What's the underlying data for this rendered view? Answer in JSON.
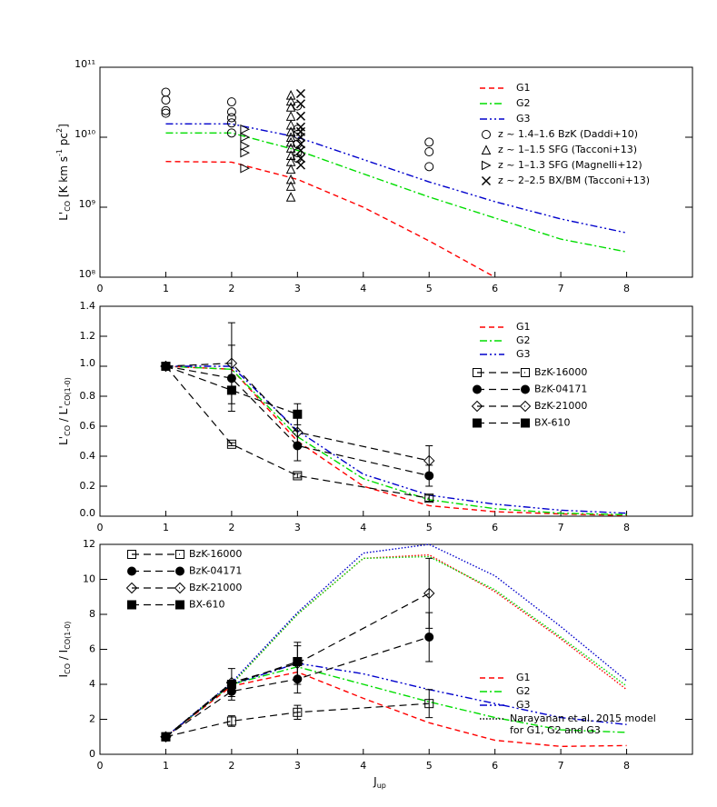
{
  "chart_data": [
    {
      "type": "line",
      "log_y": true,
      "legend": "upper right",
      "ylabel": [
        {
          "t": "L'"
        },
        {
          "t": "CO",
          "pos": "sub"
        },
        {
          "t": " [K km s"
        },
        {
          "t": "-1",
          "pos": "sup"
        },
        {
          "t": " pc"
        },
        {
          "t": "2",
          "pos": "sup"
        },
        {
          "t": "]"
        }
      ],
      "xlim": [
        0,
        9
      ],
      "xticks": [
        0,
        1,
        2,
        3,
        4,
        5,
        6,
        7,
        8
      ],
      "ylim": [
        100000000,
        100000000000
      ],
      "yticks": [
        {
          "value": 100000000,
          "label": "10⁸"
        },
        {
          "value": 1000000000,
          "label": "10⁹"
        },
        {
          "value": 10000000000,
          "label": "10¹⁰"
        },
        {
          "value": 100000000000,
          "label": "10¹¹"
        }
      ],
      "x": [
        1,
        2,
        3,
        4,
        5,
        6,
        7,
        8
      ],
      "series": [
        {
          "name": "G1",
          "color": "#ff0000",
          "dash": "dashed",
          "values": [
            4500000000,
            4400000000,
            2500000000,
            1000000000,
            330000000,
            100000000,
            null,
            null
          ]
        },
        {
          "name": "G2",
          "color": "#00dd00",
          "dash": "dashdot",
          "values": [
            11500000000,
            11500000000,
            6500000000,
            3000000000,
            1400000000,
            700000000,
            350000000,
            230000000
          ]
        },
        {
          "name": "G3",
          "color": "#0000cc",
          "dash": "dashdotdot",
          "values": [
            15500000000,
            15500000000,
            10000000000,
            4800000000,
            2300000000,
            1200000000,
            680000000,
            430000000
          ]
        }
      ],
      "points": [
        {
          "name": "z ~ 1.4–1.6 BzK (Daddi+10)",
          "marker": "circle",
          "x": [
            1,
            1,
            1,
            1,
            2,
            2,
            2,
            2,
            2,
            3,
            3,
            3,
            3,
            3,
            3,
            5,
            5,
            5
          ],
          "values": [
            44000000000,
            34000000000,
            24000000000,
            22000000000,
            32000000000,
            23000000000,
            19000000000,
            16000000000,
            11500000000,
            28000000000,
            13000000000,
            11000000000,
            8000000000,
            6000000000,
            5000000000,
            8500000000,
            6200000000,
            3800000000
          ]
        },
        {
          "name": "z ~ 1–1.5 SFG (Tacconi+13)",
          "marker": "triangle",
          "x": [
            2.9,
            2.9,
            2.9,
            2.9,
            2.9,
            2.9,
            2.9,
            2.9,
            2.9,
            2.9,
            2.9,
            2.9,
            2.9,
            2.9,
            2.9
          ],
          "values": [
            40000000000,
            33000000000,
            27000000000,
            20000000000,
            15000000000,
            12000000000,
            10000000000,
            8500000000,
            7000000000,
            5500000000,
            4500000000,
            3500000000,
            2500000000,
            2000000000,
            1400000000
          ]
        },
        {
          "name": "z ~ 1–1.3 SFG (Magnelli+12)",
          "marker": "triangle-right",
          "x": [
            2.2,
            2.2,
            2.2,
            2.2,
            2.2
          ],
          "values": [
            13000000000,
            10000000000,
            7500000000,
            6000000000,
            3600000000
          ]
        },
        {
          "name": "z ~ 2–2.5 BX/BM (Tacconi+13)",
          "marker": "x",
          "x": [
            3.05,
            3.05,
            3.05,
            3.05,
            3.05,
            3.05,
            3.05,
            3.05,
            3.05,
            3.05
          ],
          "values": [
            42000000000,
            30000000000,
            20000000000,
            14000000000,
            12000000000,
            10000000000,
            8000000000,
            6500000000,
            5000000000,
            4000000000
          ]
        }
      ]
    },
    {
      "type": "line",
      "legend": "upper right",
      "ylabel": [
        {
          "t": "L'"
        },
        {
          "t": "CO",
          "pos": "sub"
        },
        {
          "t": " / L'"
        },
        {
          "t": "CO(1-0)",
          "pos": "sub"
        }
      ],
      "xlim": [
        0,
        9
      ],
      "xticks": [
        0,
        1,
        2,
        3,
        4,
        5,
        6,
        7,
        8
      ],
      "ylim": [
        0,
        1.4
      ],
      "yticks": [
        {
          "value": 0,
          "label": "0.0"
        },
        0.2,
        0.4,
        0.6,
        0.8,
        {
          "value": 1,
          "label": "1.0"
        },
        1.2,
        1.4
      ],
      "x": [
        1,
        2,
        3,
        4,
        5,
        6,
        7,
        8
      ],
      "series": [
        {
          "name": "G1",
          "color": "#ff0000",
          "dash": "dashed",
          "values": [
            1,
            0.98,
            0.5,
            0.2,
            0.07,
            0.03,
            0.015,
            0.005
          ]
        },
        {
          "name": "G2",
          "color": "#00dd00",
          "dash": "dashdot",
          "values": [
            1,
            0.98,
            0.53,
            0.25,
            0.11,
            0.05,
            0.02,
            0.01
          ]
        },
        {
          "name": "G3",
          "color": "#0000cc",
          "dash": "dashdotdot",
          "values": [
            1,
            1.0,
            0.57,
            0.28,
            0.14,
            0.08,
            0.04,
            0.02
          ]
        }
      ],
      "observations": [
        {
          "name": "BzK-16000",
          "marker": "square",
          "x": [
            1,
            2,
            3,
            5
          ],
          "values": [
            1,
            0.48,
            0.27,
            0.12
          ],
          "errors": [
            null,
            0.01,
            0.015,
            0.02
          ]
        },
        {
          "name": "BzK-04171",
          "marker": "filled-circle",
          "x": [
            1,
            2,
            3,
            5
          ],
          "values": [
            1,
            0.92,
            0.47,
            0.27
          ],
          "errors": [
            null,
            0.22,
            0.1,
            0.07
          ]
        },
        {
          "name": "BzK-21000",
          "marker": "diamond",
          "x": [
            1,
            2,
            3,
            5
          ],
          "values": [
            1,
            1.02,
            0.56,
            0.37
          ],
          "errors": [
            null,
            0.27,
            0.1,
            0.1
          ]
        },
        {
          "name": "BX-610",
          "marker": "filled-square",
          "x": [
            1,
            2,
            3
          ],
          "values": [
            1,
            0.84,
            0.68
          ],
          "errors": [
            null,
            null,
            0.07
          ]
        }
      ]
    },
    {
      "type": "line",
      "legend": "lower right",
      "marker_legend": "upper left",
      "ylabel": [
        {
          "t": "I"
        },
        {
          "t": "CO",
          "pos": "sub"
        },
        {
          "t": " / I"
        },
        {
          "t": "CO(1-0)",
          "pos": "sub"
        }
      ],
      "xlabel": [
        {
          "t": "J"
        },
        {
          "t": "up",
          "pos": "sub"
        }
      ],
      "xlim": [
        0,
        9
      ],
      "xticks": [
        0,
        1,
        2,
        3,
        4,
        5,
        6,
        7,
        8
      ],
      "ylim": [
        0,
        12
      ],
      "yticks": [
        0,
        2,
        4,
        6,
        8,
        10,
        12
      ],
      "x": [
        1,
        2,
        3,
        4,
        5,
        6,
        7,
        8
      ],
      "series": [
        {
          "name": "G1",
          "color": "#ff0000",
          "dash": "dashed",
          "values": [
            1,
            3.9,
            4.7,
            3.2,
            1.8,
            0.8,
            0.45,
            0.5
          ]
        },
        {
          "name": "G2",
          "color": "#00dd00",
          "dash": "dashdot",
          "values": [
            1,
            4.0,
            5.0,
            4.0,
            3.0,
            2.1,
            1.4,
            1.25
          ]
        },
        {
          "name": "G3",
          "color": "#0000cc",
          "dash": "dashdotdot",
          "values": [
            1,
            4.0,
            5.2,
            4.6,
            3.7,
            2.9,
            2.1,
            1.7
          ]
        },
        {
          "color": "#ff0000",
          "dash": "dotted",
          "values": [
            1,
            4.0,
            8.0,
            11.2,
            11.4,
            9.3,
            6.6,
            3.7
          ]
        },
        {
          "color": "#00dd00",
          "dash": "dotted",
          "values": [
            1,
            4.0,
            8.0,
            11.2,
            11.3,
            9.4,
            6.7,
            3.9
          ]
        },
        {
          "color": "#0000cc",
          "dash": "dotted",
          "values": [
            1,
            4.1,
            8.1,
            11.5,
            12.0,
            10.2,
            7.3,
            4.2
          ]
        }
      ],
      "model_legend": [
        "Narayanan et al. 2015 model",
        "for G1, G2 and G3"
      ],
      "observations": [
        {
          "name": "BzK-16000",
          "marker": "square",
          "x": [
            1,
            2,
            3,
            5
          ],
          "values": [
            1,
            1.9,
            2.4,
            2.9
          ],
          "errors": [
            null,
            0.3,
            0.4,
            0.8
          ]
        },
        {
          "name": "BzK-04171",
          "marker": "filled-circle",
          "x": [
            1,
            2,
            3,
            5
          ],
          "values": [
            1,
            3.6,
            4.3,
            6.7
          ],
          "errors": [
            null,
            0.5,
            0.8,
            1.4
          ]
        },
        {
          "name": "BzK-21000",
          "marker": "diamond",
          "x": [
            1,
            2,
            3,
            5
          ],
          "values": [
            1,
            4.1,
            5.2,
            9.2
          ],
          "errors": [
            null,
            0.8,
            1.2,
            2.0
          ]
        },
        {
          "name": "BX-610",
          "marker": "filled-square",
          "x": [
            1,
            2,
            3
          ],
          "values": [
            1,
            4.0,
            5.3
          ],
          "errors": [
            null,
            null,
            0.9
          ]
        }
      ]
    }
  ]
}
